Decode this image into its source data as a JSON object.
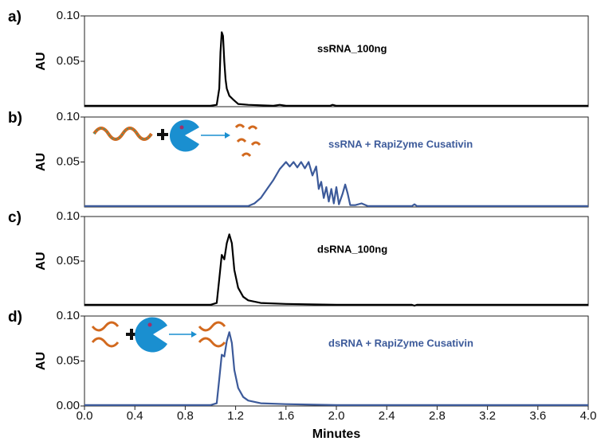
{
  "chart_data": [
    {
      "type": "line",
      "label": "a)",
      "ylabel": "AU",
      "annotation": "ssRNA_100ng",
      "color": "#000000",
      "x": [
        0,
        1.0,
        1.05,
        1.07,
        1.08,
        1.09,
        1.1,
        1.11,
        1.12,
        1.13,
        1.15,
        1.18,
        1.22,
        1.3,
        1.5,
        1.55,
        1.6,
        1.95,
        1.97,
        2.0,
        2.6,
        3.0,
        4.0
      ],
      "values": [
        0.001,
        0.001,
        0.002,
        0.02,
        0.06,
        0.082,
        0.078,
        0.05,
        0.03,
        0.02,
        0.012,
        0.008,
        0.003,
        0.002,
        0.001,
        0.002,
        0.001,
        0.001,
        0.002,
        0.001,
        0.001,
        0.001,
        0.001
      ],
      "ylim": [
        0,
        0.1
      ],
      "yticks": [
        {
          "value": 0.05,
          "label": "0.05"
        },
        {
          "value": 0.1,
          "label": "0.10"
        }
      ]
    },
    {
      "type": "line",
      "label": "b)",
      "ylabel": "AU",
      "annotation": "ssRNA + RapiZyme Cusativin",
      "color": "#3c5a9a",
      "x": [
        0,
        1.3,
        1.35,
        1.4,
        1.45,
        1.5,
        1.55,
        1.6,
        1.63,
        1.66,
        1.69,
        1.72,
        1.75,
        1.78,
        1.81,
        1.84,
        1.86,
        1.88,
        1.9,
        1.92,
        1.94,
        1.96,
        1.98,
        2.0,
        2.02,
        2.05,
        2.07,
        2.09,
        2.11,
        2.15,
        2.2,
        2.25,
        2.6,
        2.62,
        2.64,
        3.0,
        4.0
      ],
      "values": [
        0.001,
        0.001,
        0.004,
        0.01,
        0.02,
        0.03,
        0.042,
        0.05,
        0.045,
        0.05,
        0.044,
        0.05,
        0.043,
        0.05,
        0.035,
        0.045,
        0.02,
        0.028,
        0.01,
        0.022,
        0.006,
        0.02,
        0.004,
        0.022,
        0.003,
        0.015,
        0.025,
        0.015,
        0.002,
        0.002,
        0.004,
        0.001,
        0.001,
        0.003,
        0.001,
        0.001,
        0.001
      ],
      "ylim": [
        0,
        0.1
      ],
      "yticks": [
        {
          "value": 0.05,
          "label": "0.05"
        },
        {
          "value": 0.1,
          "label": "0.10"
        }
      ]
    },
    {
      "type": "line",
      "label": "c)",
      "ylabel": "AU",
      "annotation": "dsRNA_100ng",
      "color": "#000000",
      "x": [
        0,
        1.0,
        1.05,
        1.07,
        1.09,
        1.11,
        1.13,
        1.15,
        1.17,
        1.19,
        1.22,
        1.26,
        1.3,
        1.4,
        1.6,
        2.0,
        2.6,
        2.62,
        2.64,
        3.0,
        4.0
      ],
      "values": [
        0.001,
        0.001,
        0.003,
        0.03,
        0.057,
        0.052,
        0.07,
        0.08,
        0.07,
        0.04,
        0.02,
        0.01,
        0.006,
        0.003,
        0.002,
        0.001,
        0.001,
        0.0,
        0.001,
        0.001,
        0.001
      ],
      "ylim": [
        0,
        0.1
      ],
      "yticks": [
        {
          "value": 0.05,
          "label": "0.05"
        },
        {
          "value": 0.1,
          "label": "0.10"
        }
      ]
    },
    {
      "type": "line",
      "label": "d)",
      "ylabel": "AU",
      "annotation": "dsRNA + RapiZyme  Cusativin",
      "color": "#3c5a9a",
      "x": [
        0,
        1.0,
        1.05,
        1.07,
        1.09,
        1.11,
        1.13,
        1.15,
        1.17,
        1.19,
        1.22,
        1.26,
        1.3,
        1.4,
        1.6,
        2.0,
        2.6,
        3.0,
        4.0
      ],
      "values": [
        0.001,
        0.001,
        0.003,
        0.03,
        0.057,
        0.055,
        0.072,
        0.082,
        0.07,
        0.04,
        0.02,
        0.01,
        0.006,
        0.003,
        0.002,
        0.001,
        0.001,
        0.001,
        0.001
      ],
      "ylim": [
        0,
        0.1
      ],
      "yticks": [
        {
          "value": 0,
          "label": "0.00"
        },
        {
          "value": 0.05,
          "label": "0.05"
        },
        {
          "value": 0.1,
          "label": "0.10"
        }
      ],
      "xlabel": "Minutes",
      "xlim": [
        0,
        4
      ],
      "xticks": [
        {
          "value": 0,
          "label": "0.0"
        },
        0.4,
        0.8,
        1.2,
        1.6,
        {
          "value": 2,
          "label": "2.0"
        },
        2.4,
        2.8,
        3.2,
        3.6,
        {
          "value": 4,
          "label": "4.0"
        }
      ]
    }
  ]
}
